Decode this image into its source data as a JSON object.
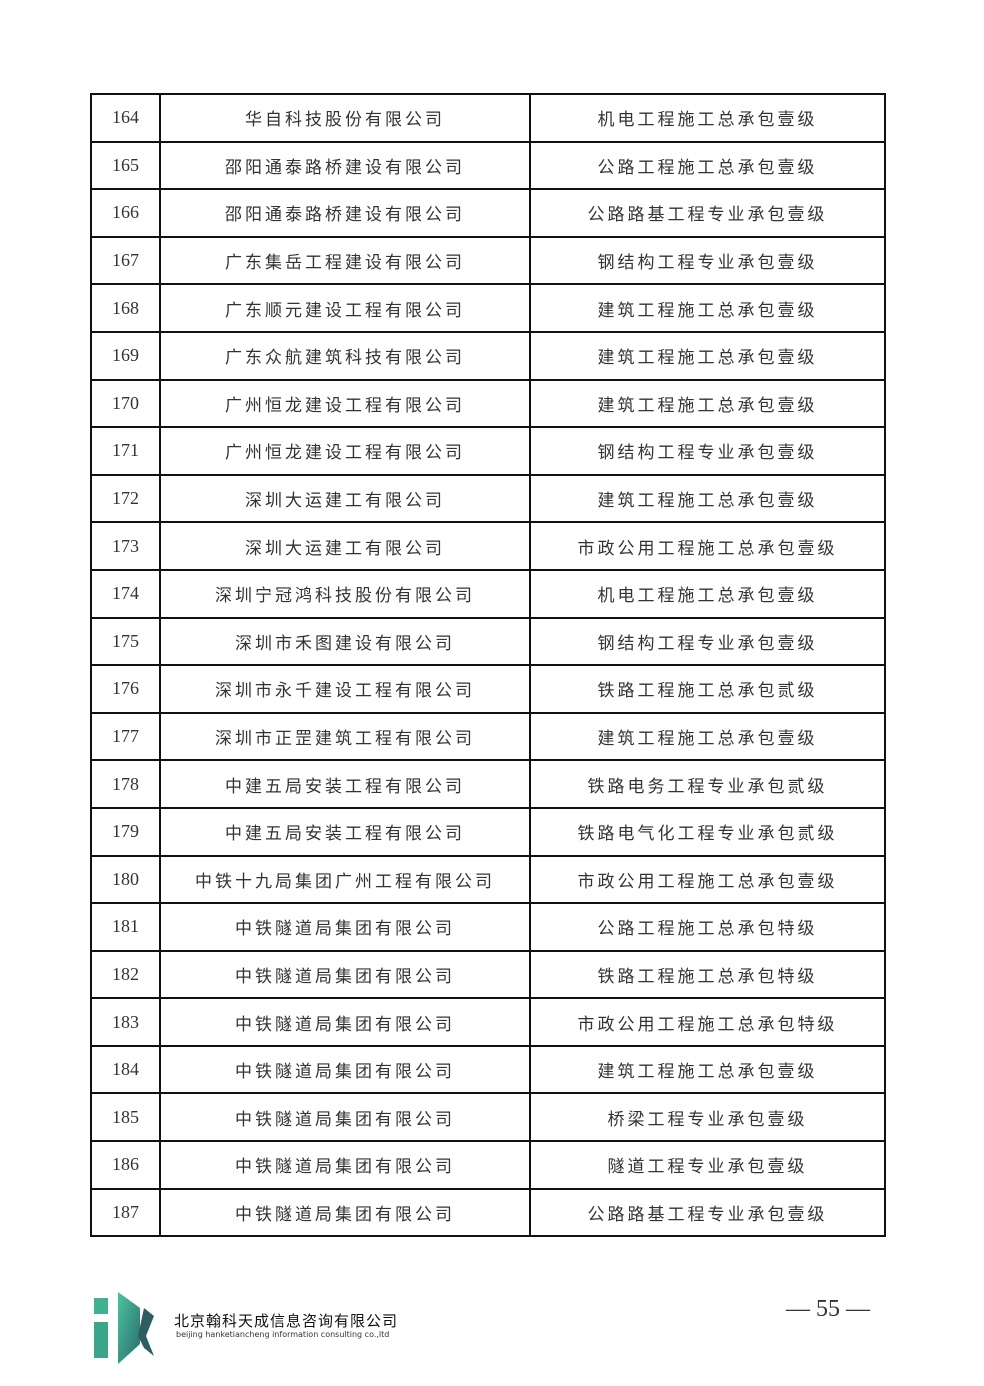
{
  "table": {
    "rows": [
      [
        "164",
        "华自科技股份有限公司",
        "机电工程施工总承包壹级"
      ],
      [
        "165",
        "邵阳通泰路桥建设有限公司",
        "公路工程施工总承包壹级"
      ],
      [
        "166",
        "邵阳通泰路桥建设有限公司",
        "公路路基工程专业承包壹级"
      ],
      [
        "167",
        "广东集岳工程建设有限公司",
        "钢结构工程专业承包壹级"
      ],
      [
        "168",
        "广东顺元建设工程有限公司",
        "建筑工程施工总承包壹级"
      ],
      [
        "169",
        "广东众航建筑科技有限公司",
        "建筑工程施工总承包壹级"
      ],
      [
        "170",
        "广州恒龙建设工程有限公司",
        "建筑工程施工总承包壹级"
      ],
      [
        "171",
        "广州恒龙建设工程有限公司",
        "钢结构工程专业承包壹级"
      ],
      [
        "172",
        "深圳大运建工有限公司",
        "建筑工程施工总承包壹级"
      ],
      [
        "173",
        "深圳大运建工有限公司",
        "市政公用工程施工总承包壹级"
      ],
      [
        "174",
        "深圳宁冠鸿科技股份有限公司",
        "机电工程施工总承包壹级"
      ],
      [
        "175",
        "深圳市禾图建设有限公司",
        "钢结构工程专业承包壹级"
      ],
      [
        "176",
        "深圳市永千建设工程有限公司",
        "铁路工程施工总承包贰级"
      ],
      [
        "177",
        "深圳市正罡建筑工程有限公司",
        "建筑工程施工总承包壹级"
      ],
      [
        "178",
        "中建五局安装工程有限公司",
        "铁路电务工程专业承包贰级"
      ],
      [
        "179",
        "中建五局安装工程有限公司",
        "铁路电气化工程专业承包贰级"
      ],
      [
        "180",
        "中铁十九局集团广州工程有限公司",
        "市政公用工程施工总承包壹级"
      ],
      [
        "181",
        "中铁隧道局集团有限公司",
        "公路工程施工总承包特级"
      ],
      [
        "182",
        "中铁隧道局集团有限公司",
        "铁路工程施工总承包特级"
      ],
      [
        "183",
        "中铁隧道局集团有限公司",
        "市政公用工程施工总承包特级"
      ],
      [
        "184",
        "中铁隧道局集团有限公司",
        "建筑工程施工总承包壹级"
      ],
      [
        "185",
        "中铁隧道局集团有限公司",
        "桥梁工程专业承包壹级"
      ],
      [
        "186",
        "中铁隧道局集团有限公司",
        "隧道工程专业承包壹级"
      ],
      [
        "187",
        "中铁隧道局集团有限公司",
        "公路路基工程专业承包壹级"
      ]
    ]
  },
  "footer": {
    "logo_text": "iK",
    "company_cn": "北京翰科天成信息咨询有限公司",
    "company_en": "beijing hanketiancheng information consulting co.,ltd",
    "page_number": "— 55 —",
    "logo_colors": [
      "#3aa58a",
      "#2c6e6a"
    ]
  }
}
